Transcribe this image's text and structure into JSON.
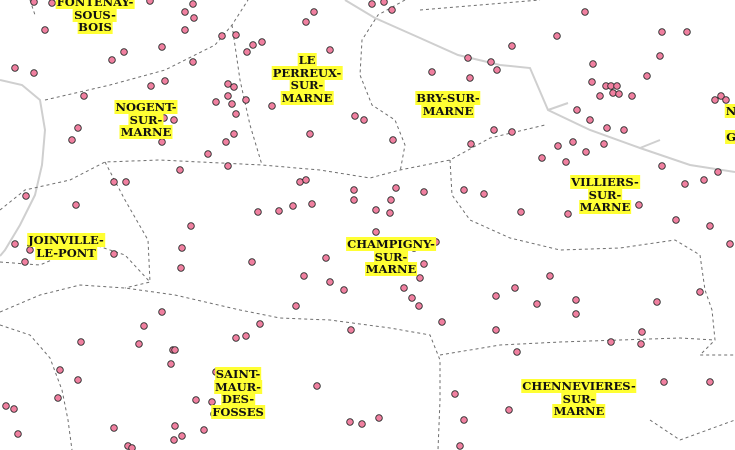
{
  "map": {
    "colors": {
      "background": "#ffffff",
      "boundary": "#6e6e6e",
      "road": "#cfcfcf",
      "marker_fill": "#f080a0",
      "marker_stroke": "#2a2a2a",
      "label_highlight": "#ffff33"
    },
    "towns": [
      {
        "name": "FONTENAY-\nSOUS-\nBOIS"
      },
      {
        "name": "LE\nPERREUX-\nSUR-\nMARNE"
      },
      {
        "name": "BRY-SUR-\nMARNE"
      },
      {
        "name": "NOGENT-\nSUR-\nMARNE"
      },
      {
        "name": "VILLIERS-\nSUR-\nMARNE"
      },
      {
        "name": "JOINVILLE-\nLE-PONT"
      },
      {
        "name": "CHAMPIGNY-\nSUR-\nMARNE"
      },
      {
        "name": "SAINT-\nMAUR-\nDES-\nFOSSES"
      },
      {
        "name": "CHENNEVIERES-\nSUR-\nMARNE"
      },
      {
        "name": "N"
      },
      {
        "name": "G"
      }
    ]
  }
}
